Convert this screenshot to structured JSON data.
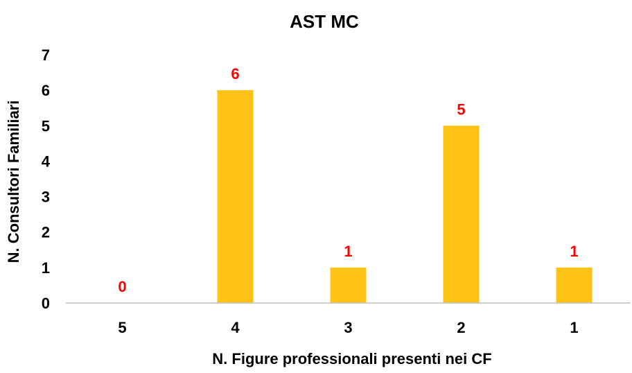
{
  "chart_data": {
    "type": "bar",
    "title": "AST MC",
    "xlabel": "N. Figure professionali presenti nei CF",
    "ylabel": "N. Consultori Familiari",
    "categories": [
      "5",
      "4",
      "3",
      "2",
      "1"
    ],
    "values": [
      0,
      6,
      1,
      5,
      1
    ],
    "data_labels": [
      "0",
      "6",
      "1",
      "5",
      "1"
    ],
    "yticks": [
      "0",
      "1",
      "2",
      "3",
      "4",
      "5",
      "6",
      "7"
    ],
    "ylim": [
      0,
      7
    ],
    "grid": false,
    "legend": "none",
    "colors": {
      "bar": "#FFC316",
      "data_label": "#FF0000",
      "axis": "#BFBFBF"
    }
  }
}
